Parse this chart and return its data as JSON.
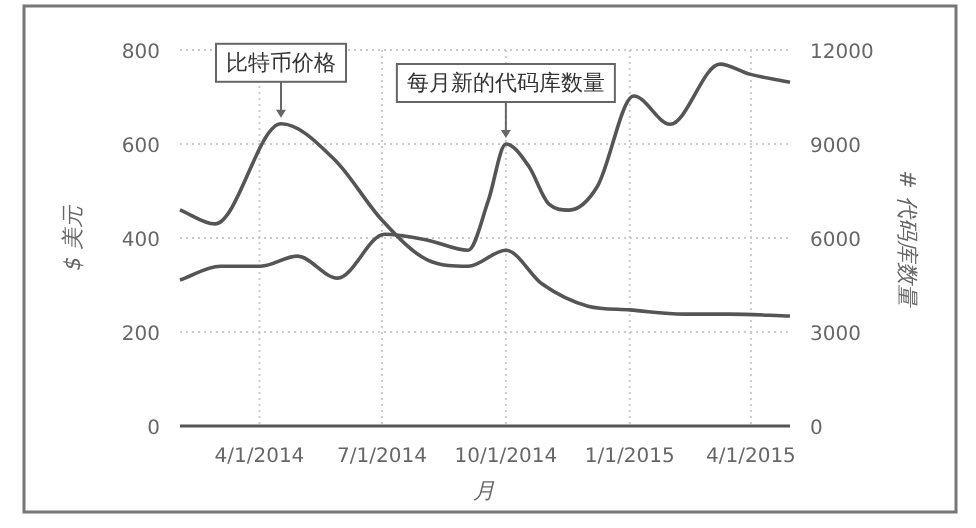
{
  "chart_data": {
    "type": "line",
    "xlabel": "月",
    "ylabel": "$ 美元",
    "y2label": "# 代码库数量",
    "xlim": [
      "2014-02-01",
      "2015-04-30"
    ],
    "xticks": [
      {
        "value": "2014-04-01",
        "label": "4/1/2014"
      },
      {
        "value": "2014-07-01",
        "label": "7/1/2014"
      },
      {
        "value": "2014-10-01",
        "label": "10/1/2014"
      },
      {
        "value": "2015-01-01",
        "label": "1/1/2015"
      },
      {
        "value": "2015-04-01",
        "label": "4/1/2015"
      }
    ],
    "ylim": [
      0,
      800
    ],
    "yticks": [
      0,
      200,
      400,
      600,
      800
    ],
    "y2lim": [
      0,
      12000
    ],
    "y2ticks": [
      0,
      3000,
      6000,
      9000,
      12000
    ],
    "grid": true,
    "marker": "none",
    "line_style": "solid",
    "series": [
      {
        "color": "#555555",
        "x": [
          "2014-02-01",
          "2014-02-27",
          "2014-04-17",
          "2014-05-27",
          "2014-07-01",
          "2014-08-04",
          "2014-09-03",
          "2014-10-01",
          "2014-10-28",
          "2014-12-01",
          "2015-01-01",
          "2015-02-10",
          "2015-03-16",
          "2015-04-30"
        ],
        "values": [
          460,
          430,
          643,
          566,
          438,
          353,
          340,
          374,
          302,
          255,
          247,
          238,
          238,
          234
        ]
      },
      {
        "color": "#555555",
        "axis": "y2",
        "x": [
          "2014-02-01",
          "2014-03-03",
          "2014-04-02",
          "2014-04-29",
          "2014-05-29",
          "2014-07-03",
          "2014-08-04",
          "2014-09-03",
          "2014-09-18",
          "2014-10-01",
          "2014-10-18",
          "2014-11-02",
          "2014-11-17",
          "2014-12-08",
          "2015-01-04",
          "2015-01-31",
          "2015-03-09",
          "2015-03-31",
          "2015-04-30"
        ],
        "values": [
          4660,
          5100,
          5100,
          5420,
          4720,
          6120,
          5930,
          5610,
          7200,
          9000,
          8290,
          7080,
          6890,
          7650,
          10530,
          9630,
          11550,
          11230,
          10970
        ]
      }
    ],
    "annotations": [
      {
        "text": "比特币价格",
        "x": "2014-04-17",
        "y": 643
      },
      {
        "text": "每月新的代码库数量",
        "x": "2014-10-01",
        "y": 600
      }
    ]
  }
}
